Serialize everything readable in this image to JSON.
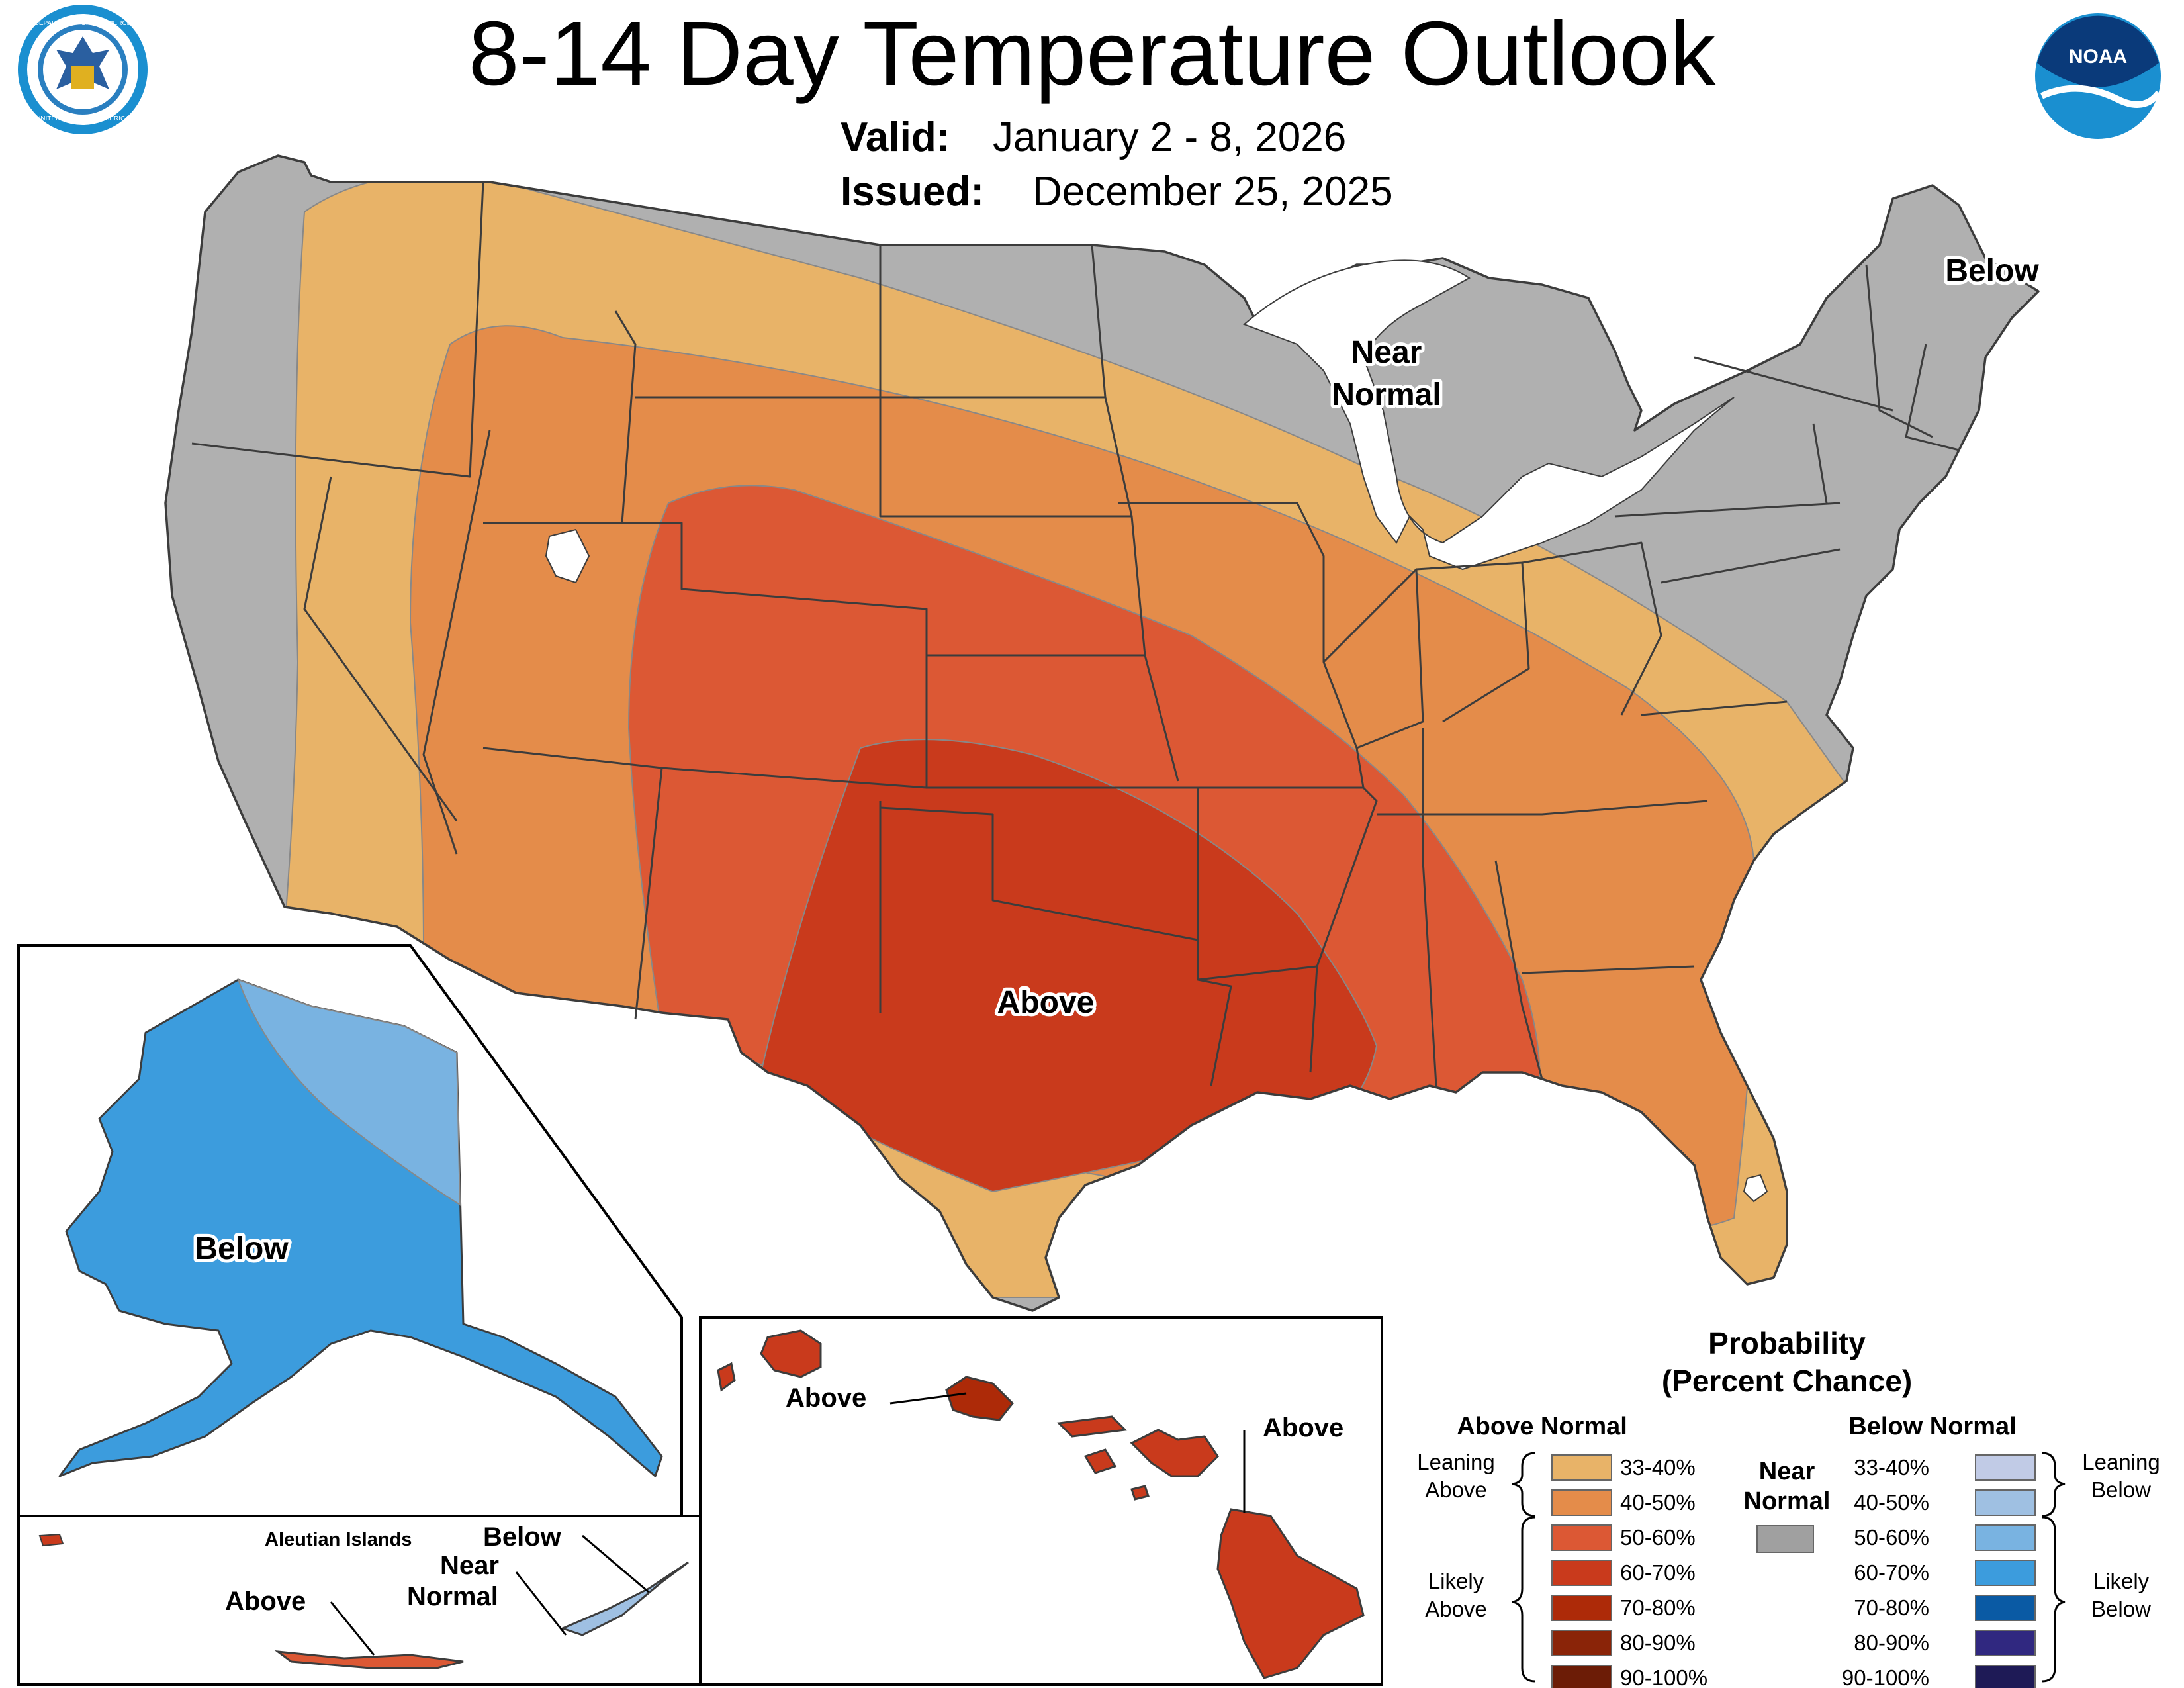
{
  "header": {
    "title": "8-14 Day Temperature Outlook",
    "valid_label": "Valid:",
    "valid_value": "January 2 - 8, 2026",
    "issued_label": "Issued:",
    "issued_value": "December 25, 2025"
  },
  "logos": {
    "commerce_seal": {
      "icon": "department-of-commerce-seal",
      "text_top": "DEPARTMENT OF COMMERCE",
      "text_bottom": "UNITED STATES OF AMERICA"
    },
    "noaa": {
      "icon": "noaa-logo",
      "text": "NOAA"
    }
  },
  "map_labels": {
    "conus_above": "Above",
    "conus_below": "Below",
    "conus_near_1": "Near",
    "conus_near_2": "Normal",
    "alaska_below": "Below",
    "aleutian_title": "Aleutian Islands",
    "aleutian_above": "Above",
    "aleutian_below": "Below",
    "aleutian_near_1": "Near",
    "aleutian_near_2": "Normal",
    "hawaii_above_1": "Above",
    "hawaii_above_2": "Above"
  },
  "legend": {
    "title_1": "Probability",
    "title_2": "(Percent Chance)",
    "above_header": "Above Normal",
    "below_header": "Below Normal",
    "near_1": "Near",
    "near_2": "Normal",
    "near_color": "#a0a0a0",
    "leaning_above_1": "Leaning",
    "leaning_above_2": "Above",
    "likely_above_1": "Likely",
    "likely_above_2": "Above",
    "leaning_below_1": "Leaning",
    "leaning_below_2": "Below",
    "likely_below_1": "Likely",
    "likely_below_2": "Below",
    "above": [
      {
        "range": "33-40%",
        "color": "#e8b368"
      },
      {
        "range": "40-50%",
        "color": "#e48c4a"
      },
      {
        "range": "50-60%",
        "color": "#dc5834"
      },
      {
        "range": "60-70%",
        "color": "#c93a1c"
      },
      {
        "range": "70-80%",
        "color": "#ad2a08"
      },
      {
        "range": "80-90%",
        "color": "#8a2408"
      },
      {
        "range": "90-100%",
        "color": "#6c1c06"
      }
    ],
    "below": [
      {
        "range": "33-40%",
        "color": "#c1cbe6"
      },
      {
        "range": "40-50%",
        "color": "#9fc0e2"
      },
      {
        "range": "50-60%",
        "color": "#79b3e1"
      },
      {
        "range": "60-70%",
        "color": "#3c9cdd"
      },
      {
        "range": "70-80%",
        "color": "#0a5aa4"
      },
      {
        "range": "80-90%",
        "color": "#302880"
      },
      {
        "range": "90-100%",
        "color": "#1e1a56"
      }
    ]
  }
}
